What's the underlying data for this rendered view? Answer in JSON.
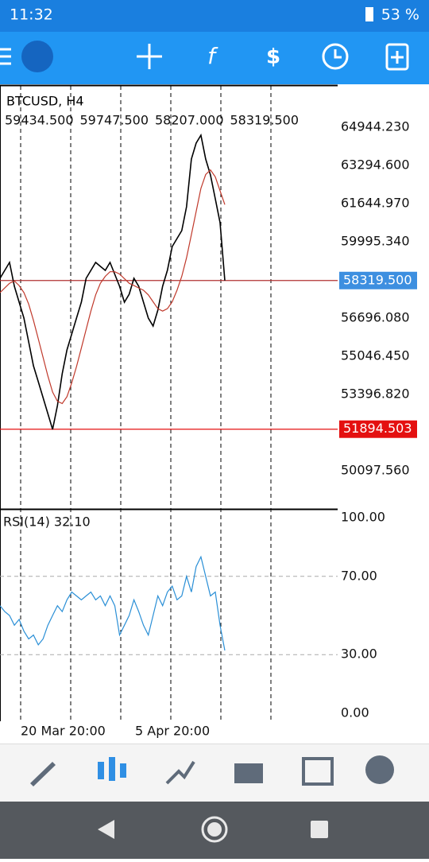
{
  "status_bar": {
    "time": "11:32",
    "battery": "53 %"
  },
  "chart_data": [
    {
      "type": "line",
      "symbol": "BTCUSD, H4",
      "ohlc": [
        "59434.500",
        "59747.500",
        "58207.000",
        "58319.500"
      ],
      "series": [
        {
          "name": "close",
          "color": "#000000",
          "values": [
            58414,
            58758,
            59102,
            58071,
            57384,
            56696,
            55665,
            54634,
            53947,
            53260,
            52572,
            51885,
            52916,
            54291,
            55322,
            56009,
            56696,
            57384,
            58414,
            58758,
            59102,
            58930,
            58758,
            59102,
            58586,
            58071,
            57384,
            57727,
            58414,
            58071,
            57384,
            56696,
            56353,
            57040,
            58071,
            58758,
            59789,
            60133,
            60476,
            61508,
            63570,
            64257,
            64600,
            63570,
            62882,
            61851,
            60820,
            58319.5
          ]
        },
        {
          "name": "ma",
          "color": "#c0392b",
          "values": [
            57800,
            58000,
            58200,
            58300,
            58100,
            57800,
            57300,
            56600,
            55800,
            55000,
            54200,
            53500,
            53100,
            53000,
            53300,
            53900,
            54600,
            55400,
            56200,
            57000,
            57700,
            58200,
            58500,
            58700,
            58700,
            58600,
            58400,
            58200,
            58100,
            58000,
            57900,
            57700,
            57400,
            57100,
            57000,
            57100,
            57400,
            57900,
            58500,
            59300,
            60300,
            61300,
            62300,
            62900,
            63100,
            62800,
            62200,
            61600
          ]
        }
      ],
      "ylim": [
        48447.93,
        66731.33
      ],
      "yticks": [
        {
          "value": 64944.23,
          "label": "64944.230"
        },
        {
          "value": 63294.6,
          "label": "63294.600"
        },
        {
          "value": 61644.97,
          "label": "61644.970"
        },
        {
          "value": 59995.34,
          "label": "59995.340"
        },
        {
          "value": 56696.08,
          "label": "56696.080"
        },
        {
          "value": 55046.45,
          "label": "55046.450"
        },
        {
          "value": 53396.82,
          "label": "53396.820"
        },
        {
          "value": 50097.56,
          "label": "50097.560"
        }
      ],
      "price_lines": [
        {
          "value": 58319.5,
          "label": "58319.500",
          "color": "#3d8fe0"
        },
        {
          "value": 51894.503,
          "label": "51894.503",
          "color": "#e41010"
        }
      ]
    },
    {
      "type": "line",
      "title": "RSI(14) 32.10",
      "series": [
        {
          "name": "RSI(14)",
          "color": "#2a8fd6",
          "values": [
            55,
            52,
            50,
            45,
            48,
            42,
            38,
            40,
            35,
            38,
            45,
            50,
            55,
            52,
            58,
            62,
            60,
            58,
            60,
            62,
            58,
            60,
            55,
            60,
            55,
            40,
            45,
            50,
            58,
            52,
            45,
            40,
            50,
            60,
            55,
            62,
            65,
            58,
            60,
            70,
            62,
            75,
            80,
            70,
            60,
            62,
            45,
            32.1
          ]
        }
      ],
      "ylim": [
        0,
        100
      ],
      "yticks": [
        {
          "value": 100,
          "label": "100.00"
        },
        {
          "value": 70,
          "label": "70.00"
        },
        {
          "value": 30,
          "label": "30.00"
        },
        {
          "value": 0,
          "label": "0.00"
        }
      ],
      "x_labels": [
        "20 Mar 20:00",
        "5 Apr 20:00"
      ]
    }
  ]
}
